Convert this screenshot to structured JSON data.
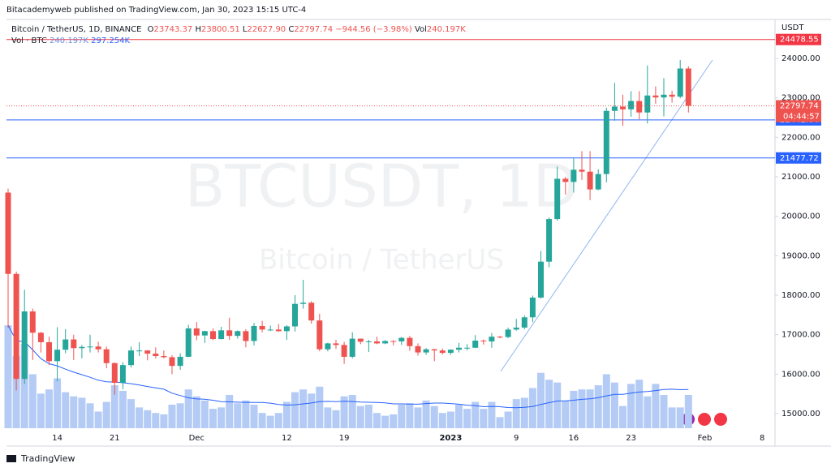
{
  "header": {
    "published": "Bitacademyweb published on TradingView.com, Jan 30, 2023 15:15 UTC-4",
    "brand": "TradingView"
  },
  "chart_data": {
    "type": "candlestick",
    "symbol": "Bitcoin / TetherUS, 1D, BINANCE",
    "legend": {
      "open_prefix": "O",
      "open": "23743.37",
      "high_prefix": "H",
      "high": "23800.51",
      "low_prefix": "L",
      "low": "22627.90",
      "close_prefix": "C",
      "close": "22797.74",
      "change": "−944.56 (−3.98%)",
      "vol_prefix": "Vol",
      "vol": "240.197K"
    },
    "volume_legend": {
      "name": "Vol · BTC",
      "volume": "240.197K",
      "ma": "297.254K"
    },
    "watermark": {
      "symbol": "BTCUSDT, 1D",
      "description": "Bitcoin / TetherUS"
    },
    "currency": "USDT",
    "countdown": "04:44:57",
    "categories": [
      null,
      null,
      null,
      null,
      null,
      null,
      "14",
      null,
      null,
      null,
      null,
      null,
      null,
      "21",
      null,
      null,
      null,
      null,
      null,
      null,
      null,
      null,
      null,
      "Dec",
      null,
      null,
      null,
      null,
      null,
      null,
      null,
      null,
      null,
      null,
      "12",
      null,
      null,
      null,
      null,
      null,
      null,
      "19",
      null,
      null,
      null,
      null,
      null,
      null,
      null,
      null,
      null,
      null,
      null,
      null,
      "2023",
      null,
      null,
      null,
      null,
      null,
      null,
      null,
      "9",
      null,
      null,
      null,
      null,
      null,
      null,
      "16",
      null,
      null,
      null,
      null,
      null,
      null,
      "23",
      null,
      null,
      null,
      null,
      null,
      null,
      null,
      null,
      "Feb",
      null,
      null,
      null,
      null,
      null,
      null,
      "8",
      null
    ],
    "open": [
      20600,
      18540,
      15880,
      17590,
      17050,
      16810,
      16330,
      16620,
      16880,
      16660,
      16690,
      16700,
      16630,
      16280,
      15780,
      16230,
      16600,
      16600,
      16520,
      16460,
      16430,
      16210,
      16440,
      17160,
      16980,
      17090,
      16890,
      17110,
      16970,
      17090,
      16840,
      17220,
      17130,
      17130,
      17090,
      17210,
      17780,
      17810,
      17360,
      16630,
      16780,
      16740,
      16440,
      16900,
      16820,
      16830,
      16780,
      16840,
      16830,
      16920,
      16710,
      16550,
      16630,
      16600,
      16540,
      16620,
      16670,
      16670,
      16850,
      16830,
      16950,
      16940,
      17130,
      17180,
      17440,
      17940,
      18850,
      19930,
      20950,
      20870,
      21180,
      21130,
      20680,
      21070,
      22670,
      22780,
      22710,
      22920,
      22630,
      23060,
      23010,
      23080,
      23030,
      23743.37,
      null,
      null,
      null,
      null,
      null,
      null,
      null,
      null,
      null,
      null
    ],
    "high": [
      20700,
      18600,
      18140,
      17660,
      17070,
      16950,
      17190,
      17140,
      17000,
      16740,
      17000,
      16820,
      16700,
      16300,
      16300,
      16700,
      16810,
      16610,
      16680,
      16600,
      16480,
      16530,
      17250,
      17320,
      17100,
      17160,
      17200,
      17430,
      17110,
      17140,
      17300,
      17350,
      17230,
      17270,
      17240,
      18000,
      18390,
      17850,
      17530,
      16800,
      16870,
      16820,
      17060,
      16900,
      16870,
      16950,
      16860,
      16860,
      16940,
      16970,
      16780,
      16660,
      16640,
      16650,
      16630,
      16790,
      16760,
      16990,
      16880,
      17040,
      16970,
      17180,
      17400,
      17490,
      17990,
      19120,
      19970,
      21260,
      21000,
      21470,
      21650,
      21650,
      21190,
      22750,
      23380,
      23080,
      23170,
      23170,
      23820,
      23290,
      23500,
      23180,
      23960,
      23800.51,
      null,
      null,
      null,
      null,
      null,
      null,
      null,
      null,
      null,
      null
    ],
    "low": [
      17170,
      15590,
      15750,
      16360,
      16550,
      16230,
      15815,
      16530,
      16360,
      16400,
      16550,
      16550,
      16150,
      15480,
      15620,
      16170,
      16460,
      16350,
      16400,
      16400,
      16000,
      16110,
      16430,
      16860,
      16790,
      16860,
      16880,
      16870,
      16900,
      16680,
      16730,
      17060,
      17090,
      17070,
      16870,
      17080,
      17660,
      17280,
      16580,
      16580,
      16640,
      16260,
      16400,
      16760,
      16560,
      16760,
      16760,
      16730,
      16740,
      16590,
      16470,
      16490,
      16330,
      16500,
      16490,
      16550,
      16600,
      16660,
      16750,
      16670,
      16910,
      16910,
      17100,
      17140,
      17320,
      17910,
      18710,
      19890,
      20550,
      20600,
      20920,
      20410,
      20660,
      20860,
      22420,
      22290,
      22520,
      22460,
      22350,
      22850,
      22530,
      22880,
      22990,
      22627.9,
      null,
      null,
      null,
      null,
      null,
      null,
      null,
      null,
      null,
      null
    ],
    "close": [
      18540,
      15880,
      17590,
      17050,
      16810,
      16330,
      16620,
      16880,
      16660,
      16690,
      16700,
      16630,
      16280,
      15780,
      16230,
      16600,
      16600,
      16520,
      16460,
      16430,
      16210,
      16440,
      17160,
      16980,
      17090,
      16890,
      17110,
      16970,
      17090,
      16840,
      17220,
      17130,
      17130,
      17090,
      17210,
      17780,
      17810,
      17360,
      16630,
      16780,
      16740,
      16440,
      16900,
      16820,
      16830,
      16780,
      16840,
      16830,
      16920,
      16710,
      16550,
      16630,
      16600,
      16540,
      16620,
      16670,
      16670,
      16850,
      16830,
      16950,
      16940,
      17130,
      17180,
      17440,
      17940,
      18850,
      19930,
      20950,
      20870,
      21180,
      21130,
      20680,
      21070,
      22670,
      22780,
      22710,
      22920,
      22630,
      23060,
      23010,
      23080,
      23030,
      23743.37,
      22797.74,
      null,
      null,
      null,
      null,
      null,
      null,
      null,
      null,
      null,
      null
    ],
    "volume": [
      744000,
      520000,
      610000,
      390000,
      250000,
      280000,
      360000,
      260000,
      230000,
      220000,
      180000,
      120000,
      190000,
      310000,
      270000,
      210000,
      150000,
      130000,
      110000,
      100000,
      170000,
      180000,
      280000,
      230000,
      200000,
      140000,
      150000,
      240000,
      180000,
      200000,
      170000,
      110000,
      90000,
      110000,
      190000,
      260000,
      280000,
      250000,
      300000,
      150000,
      130000,
      230000,
      240000,
      160000,
      170000,
      110000,
      90000,
      100000,
      170000,
      180000,
      150000,
      200000,
      160000,
      110000,
      120000,
      170000,
      140000,
      190000,
      140000,
      190000,
      80000,
      120000,
      210000,
      220000,
      290000,
      400000,
      350000,
      330000,
      200000,
      270000,
      280000,
      280000,
      310000,
      390000,
      330000,
      160000,
      320000,
      350000,
      230000,
      320000,
      240000,
      150000,
      150000,
      240197,
      null,
      null,
      null,
      null,
      null,
      null,
      null,
      null,
      null,
      null
    ],
    "up_color": "#26a69a",
    "down_color": "#ef5350",
    "volume_color": "#b3cbf5",
    "volume_ma_color": "#2962ff",
    "levels": [
      {
        "value": 24478.55,
        "color": "#f23645"
      },
      {
        "value": 22442.04,
        "color": "#2962ff"
      },
      {
        "value": 21477.72,
        "color": "#2962ff"
      }
    ],
    "ylim": [
      14631,
      24986
    ],
    "yticks": [
      {
        "value": 15000,
        "label": "15000.00"
      },
      {
        "value": 16000,
        "label": "16000.00"
      },
      {
        "value": 17000,
        "label": "17000.00"
      },
      {
        "value": 18000,
        "label": "18000.00"
      },
      {
        "value": 19000,
        "label": "19000.00"
      },
      {
        "value": 20000,
        "label": "20000.00"
      },
      {
        "value": 21000,
        "label": "21000.00"
      },
      {
        "value": 22000,
        "label": "22000.00"
      },
      {
        "value": 23000,
        "label": "23000.00"
      },
      {
        "value": 24000,
        "label": "24000.00"
      }
    ],
    "grid": false
  }
}
